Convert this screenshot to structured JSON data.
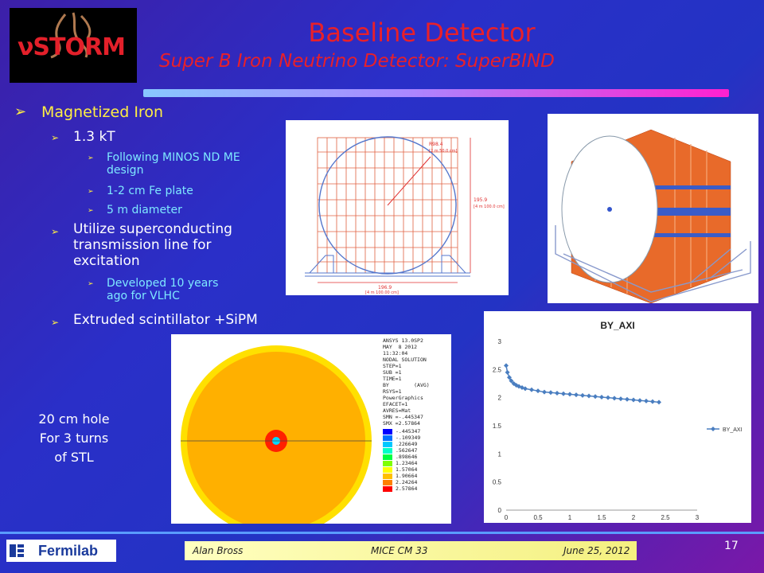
{
  "logo": {
    "text": "νSTORM"
  },
  "header": {
    "title": "Baseline Detector",
    "subtitle": "Super B Iron Neutrino Detector: SuperBIND"
  },
  "bullets": {
    "b1": "Magnetized Iron",
    "b1_1": "1.3 kT",
    "b1_1_1": "Following MINOS ND ME design",
    "b1_1_2": "1-2 cm Fe plate",
    "b1_1_3": "5 m diameter",
    "b1_2": "Utilize superconducting transmission line for excitation",
    "b1_2_1": "Developed 10 years ago for VLHC",
    "b1_3": "Extruded scintillator +SiPM"
  },
  "hole_note": {
    "l1": "20 cm hole",
    "l2": "For 3 turns",
    "l3": "of STL"
  },
  "drawing": {
    "r_label1": "R98.4",
    "r_label2": "[2 m 50.0 cm]",
    "h_label1": "195.9",
    "h_label2": "[4 m 100.0 cm]",
    "w_label1": "196.9",
    "w_label2": "[4 m 100.00 cm]"
  },
  "ansys": {
    "header": "ANSYS 13.0SP2\nMAY  8 2012\n11:32:04\nNODAL SOLUTION\nSTEP=1\nSUB =1\nTIME=1\nBY        (AVG)\nRSYS=1\nPowerGraphics\nEFACET=1\nAVRES=Mat\nSMN =-.445347\nSMX =2.57864",
    "legend": [
      {
        "value": "-.445347",
        "color": "#0000ff"
      },
      {
        "value": "-.109349",
        "color": "#0070ff"
      },
      {
        "value": ".226649",
        "color": "#00c8ff"
      },
      {
        "value": ".562647",
        "color": "#00ffc8"
      },
      {
        "value": ".898646",
        "color": "#00ff40"
      },
      {
        "value": "1.23464",
        "color": "#80ff00"
      },
      {
        "value": "1.57064",
        "color": "#ffff00"
      },
      {
        "value": "1.90664",
        "color": "#ffc000"
      },
      {
        "value": "2.24264",
        "color": "#ff8000"
      },
      {
        "value": "2.57864",
        "color": "#ff0000"
      }
    ]
  },
  "chart_data": {
    "type": "line",
    "title": "BY_AXI",
    "legend": [
      "BY_AXI"
    ],
    "legend_position": "right",
    "xlim": [
      0,
      3
    ],
    "ylim": [
      0,
      3
    ],
    "xticks": [
      "0",
      "0.5",
      "1",
      "1.5",
      "2",
      "2.5",
      "3"
    ],
    "yticks": [
      "0",
      "0.5",
      "1",
      "1.5",
      "2",
      "2.5",
      "3"
    ],
    "series": [
      {
        "name": "BY_AXI",
        "color": "#4a7ec0",
        "x": [
          0.0,
          0.02,
          0.05,
          0.08,
          0.12,
          0.16,
          0.2,
          0.25,
          0.3,
          0.4,
          0.5,
          0.6,
          0.7,
          0.8,
          0.9,
          1.0,
          1.1,
          1.2,
          1.3,
          1.4,
          1.5,
          1.6,
          1.7,
          1.8,
          1.9,
          2.0,
          2.1,
          2.2,
          2.3,
          2.4
        ],
        "y": [
          2.57,
          2.45,
          2.36,
          2.3,
          2.25,
          2.22,
          2.2,
          2.18,
          2.16,
          2.14,
          2.12,
          2.1,
          2.09,
          2.08,
          2.07,
          2.06,
          2.05,
          2.04,
          2.03,
          2.02,
          2.01,
          2.0,
          1.99,
          1.98,
          1.97,
          1.96,
          1.95,
          1.94,
          1.93,
          1.92
        ]
      }
    ]
  },
  "footer": {
    "author": "Alan Bross",
    "meeting": "MICE CM 33",
    "date": "June 25, 2012",
    "page": "17",
    "lab": "Fermilab"
  }
}
